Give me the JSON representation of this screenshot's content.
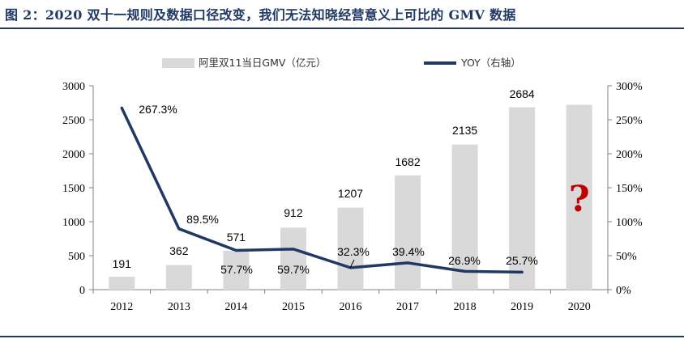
{
  "figure_title": "图 2：2020 双十一规则及数据口径改变，我们无法知晓经营意义上可比的 GMV 数据",
  "chart_data": {
    "type": "bar",
    "categories": [
      "2012",
      "2013",
      "2014",
      "2015",
      "2016",
      "2017",
      "2018",
      "2019",
      "2020"
    ],
    "series": [
      {
        "name": "阿里双11当日GMV（亿元）",
        "type": "bar",
        "axis": "left",
        "color": "#d9d9d9",
        "values": [
          191,
          362,
          571,
          912,
          1207,
          1682,
          2135,
          2684,
          null
        ],
        "labels": [
          "191",
          "362",
          "571",
          "912",
          "1207",
          "1682",
          "2135",
          "2684",
          ""
        ]
      },
      {
        "name": "YOY（右轴）",
        "type": "line",
        "axis": "right",
        "color": "#1f3864",
        "values": [
          267.3,
          89.5,
          57.7,
          59.7,
          32.3,
          39.4,
          26.9,
          25.7,
          null
        ],
        "labels": [
          "267.3%",
          "89.5%",
          "57.7%",
          "59.7%",
          "32.3%",
          "39.4%",
          "26.9%",
          "25.7%",
          ""
        ]
      }
    ],
    "unknown_bar": {
      "category": "2020",
      "value": 2720,
      "annotation": "?"
    },
    "y_left": {
      "min": 0,
      "max": 3000,
      "ticks": [
        "0",
        "500",
        "1000",
        "1500",
        "2000",
        "2500",
        "3000"
      ]
    },
    "y_right": {
      "min": 0,
      "max": 300,
      "ticks": [
        "0%",
        "50%",
        "100%",
        "150%",
        "200%",
        "250%",
        "300%"
      ]
    },
    "legend_position": "top",
    "grid": false
  }
}
